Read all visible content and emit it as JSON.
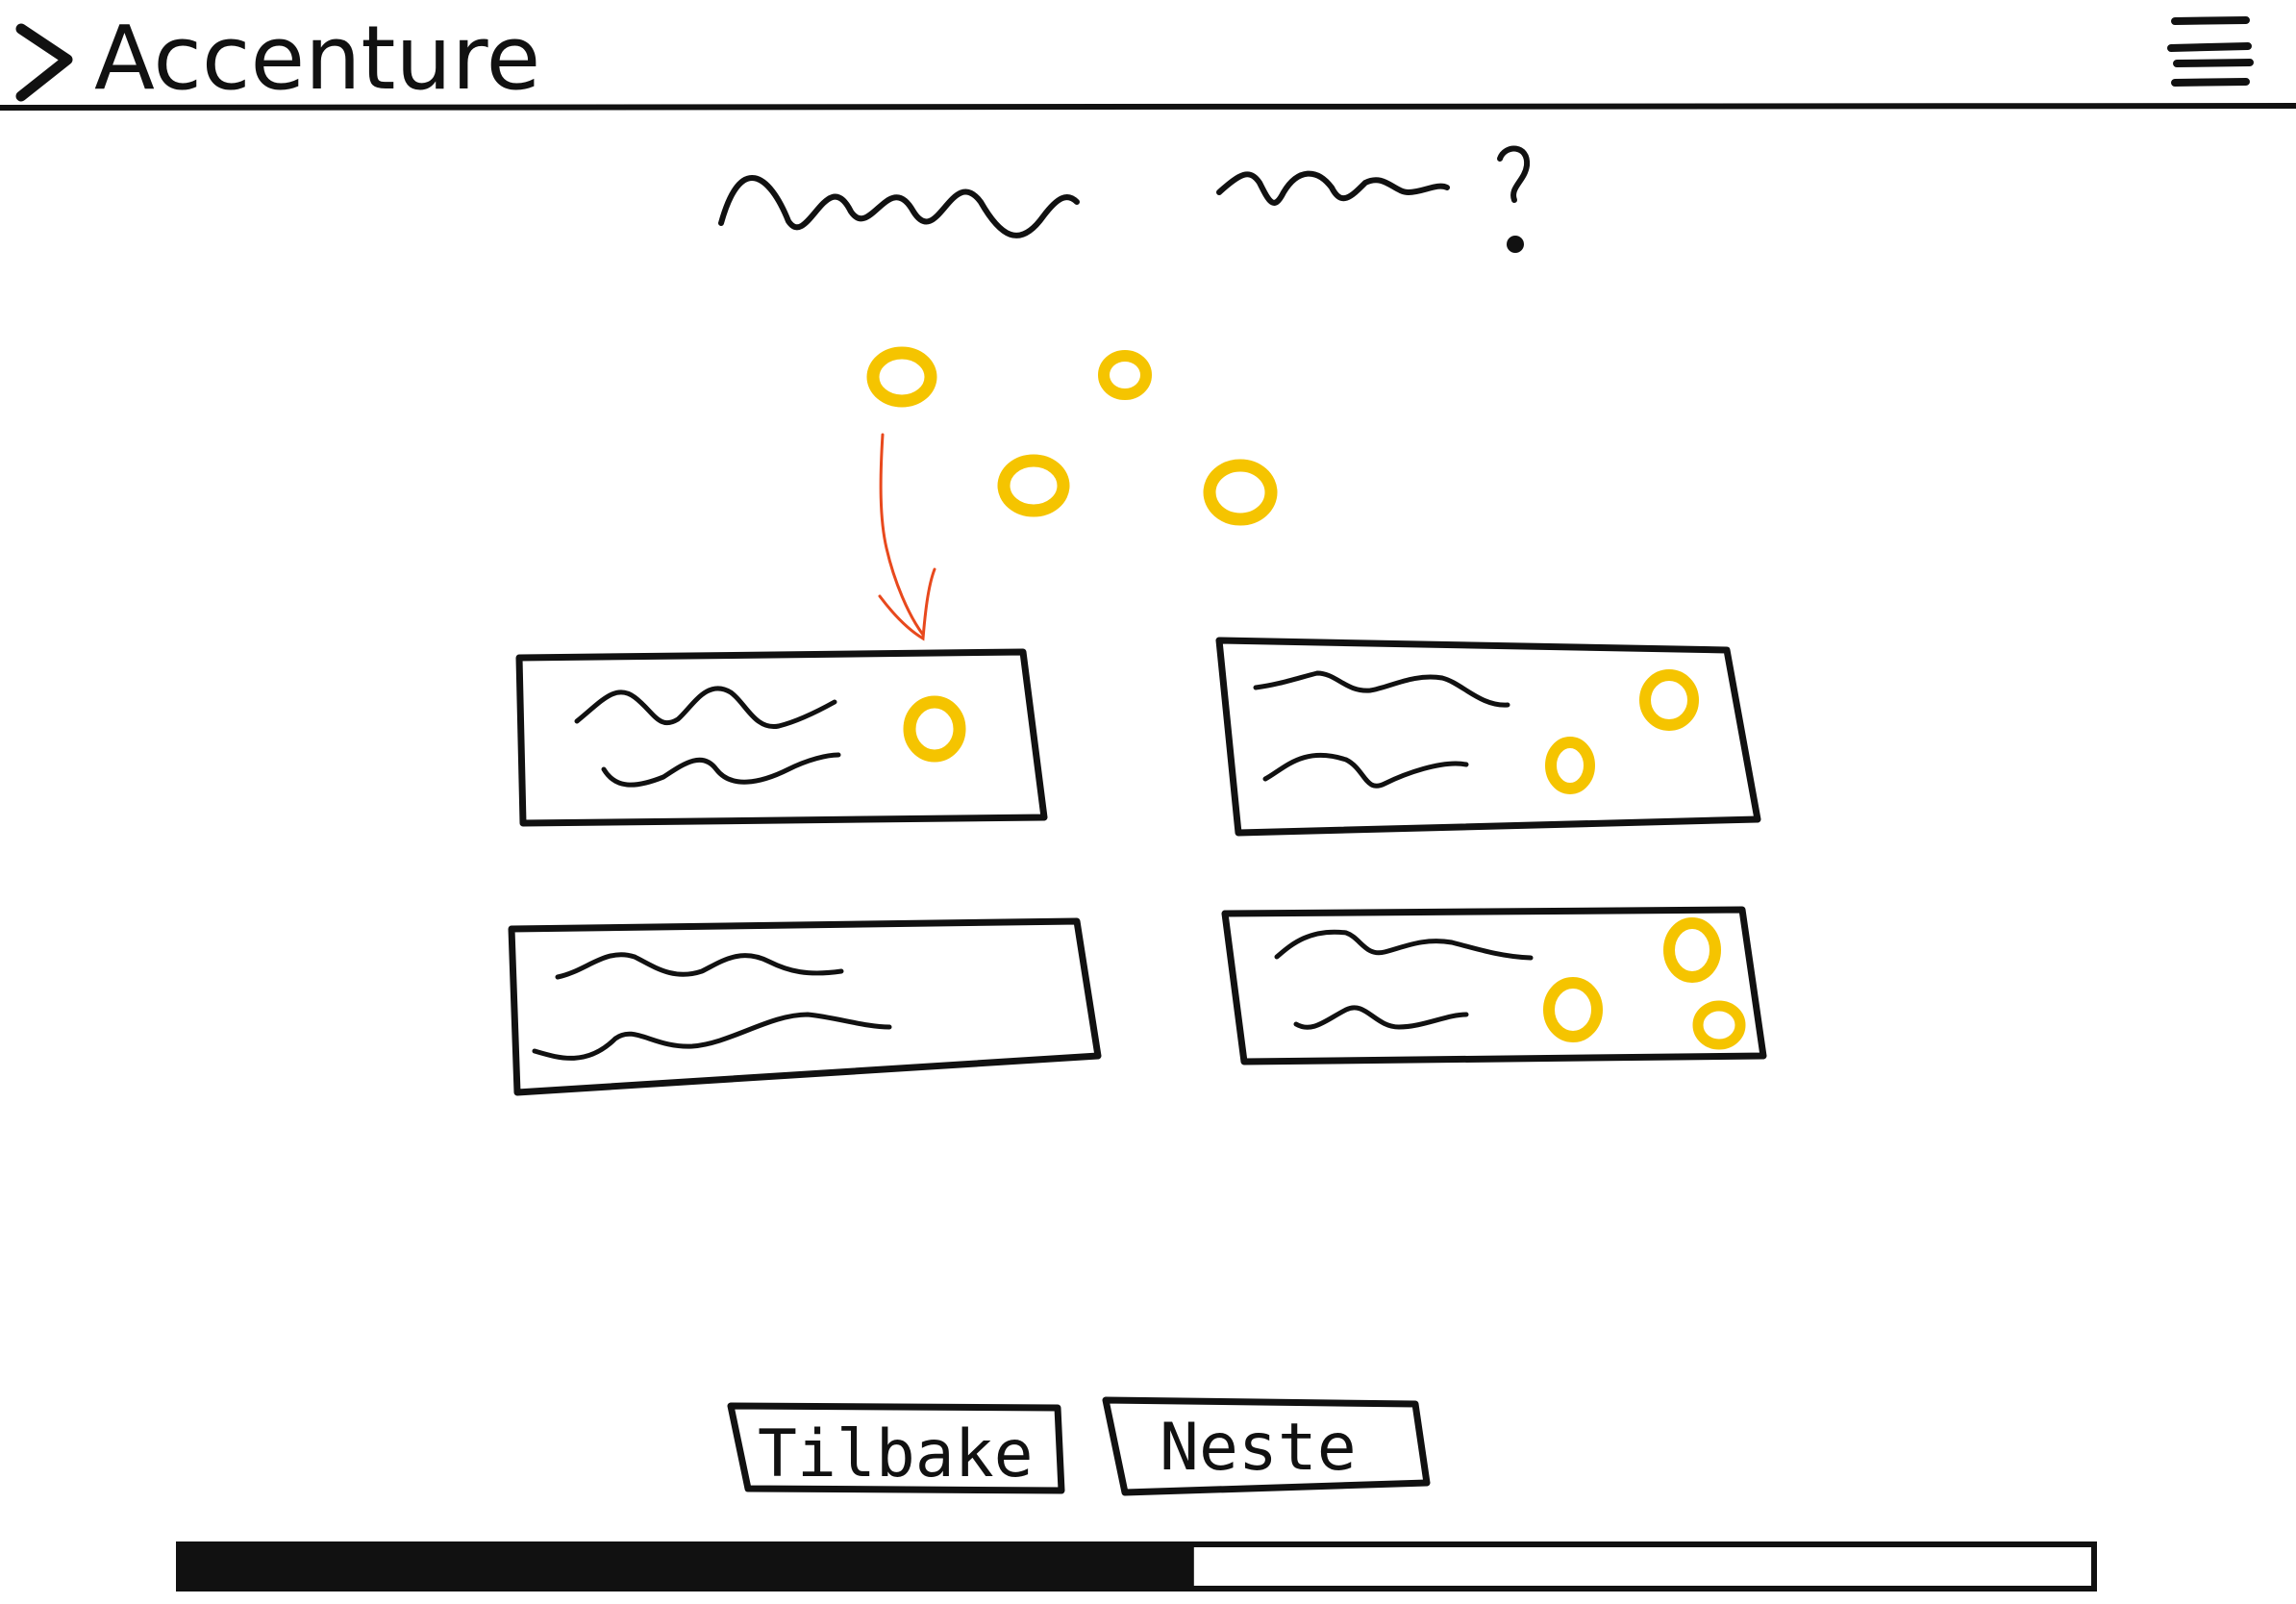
{
  "header": {
    "logo_text": "Accenture",
    "logo_icon": "chevron-right-icon",
    "menu_icon": "hamburger-menu-icon"
  },
  "question": {
    "symbol": "?"
  },
  "options": [
    {
      "dots": 1
    },
    {
      "dots": 2
    },
    {
      "dots": 0
    },
    {
      "dots": 3
    }
  ],
  "navigation": {
    "back_label": "Tilbake",
    "next_label": "Neste"
  },
  "progress": {
    "fraction": 0.53
  },
  "colors": {
    "ink": "#111111",
    "dot": "#F5C400",
    "arrow": "#E8491D"
  }
}
